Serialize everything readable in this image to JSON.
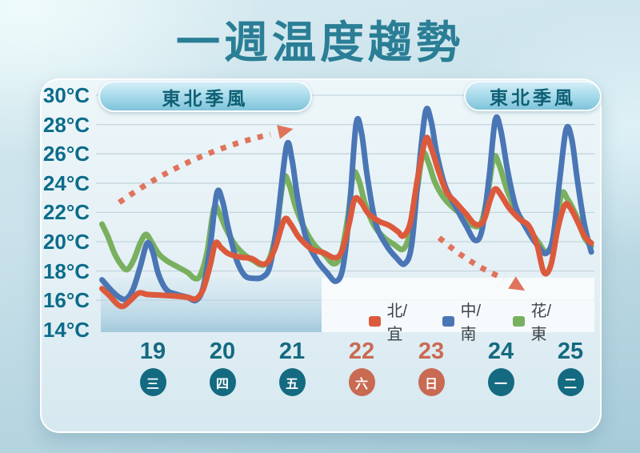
{
  "page": {
    "title": "一週温度趨勢"
  },
  "colors": {
    "title_teal": "#2a7e95",
    "axis_teal": "#0c6c8a",
    "weekday_teal": "#146a80",
    "weekend_salmon": "#c96a52",
    "arrow_salmon": "#e0735b",
    "gridline": "#c3d5dd",
    "series_north": "#dc5a3c",
    "series_central_south": "#4a76b5",
    "series_east": "#79b05f"
  },
  "chart_data": {
    "type": "line",
    "title": "一週温度趨勢",
    "y_axis": {
      "unit": "°C",
      "min": 14,
      "max": 30,
      "step": 2,
      "tick_labels": [
        "30°C",
        "28°C",
        "26°C",
        "24°C",
        "22°C",
        "20°C",
        "18°C",
        "16°C",
        "14°C"
      ],
      "grid": true
    },
    "x_axis": {
      "note": "x unit = day of month, fractional part = time of day; ticks are the dates below",
      "days": [
        {
          "date": "19",
          "weekday": "三",
          "weekend": false
        },
        {
          "date": "20",
          "weekday": "四",
          "weekend": false
        },
        {
          "date": "21",
          "weekday": "五",
          "weekend": false
        },
        {
          "date": "22",
          "weekday": "六",
          "weekend": true
        },
        {
          "date": "23",
          "weekday": "日",
          "weekend": true
        },
        {
          "date": "24",
          "weekday": "一",
          "weekend": false
        },
        {
          "date": "25",
          "weekday": "二",
          "weekend": false
        }
      ]
    },
    "annotations": {
      "monsoon_left": "東北季風",
      "monsoon_right": "東北季風",
      "trend_arrow_1": "rising (day 19 → 22)",
      "trend_arrow_2": "falling (day 23 → 25)"
    },
    "legend": {
      "position": "bottom-right inside plot",
      "entries": [
        {
          "name": "北/宜",
          "color": "#dc5a3c"
        },
        {
          "name": "中/南",
          "color": "#4a76b5"
        },
        {
          "name": "花/東",
          "color": "#79b05f"
        }
      ]
    },
    "series": [
      {
        "name": "花/東",
        "color": "#79b05f",
        "points": [
          [
            18.27,
            21.2
          ],
          [
            18.35,
            20.4
          ],
          [
            18.45,
            19.2
          ],
          [
            18.55,
            18.4
          ],
          [
            18.63,
            18.1
          ],
          [
            18.72,
            18.7
          ],
          [
            18.82,
            19.9
          ],
          [
            18.9,
            20.5
          ],
          [
            18.98,
            20.0
          ],
          [
            19.08,
            19.2
          ],
          [
            19.2,
            18.7
          ],
          [
            19.35,
            18.3
          ],
          [
            19.5,
            17.9
          ],
          [
            19.6,
            17.5
          ],
          [
            19.68,
            17.7
          ],
          [
            19.78,
            19.3
          ],
          [
            19.88,
            22.3
          ],
          [
            19.96,
            21.9
          ],
          [
            20.05,
            20.9
          ],
          [
            20.18,
            19.8
          ],
          [
            20.32,
            19.1
          ],
          [
            20.45,
            18.7
          ],
          [
            20.58,
            18.4
          ],
          [
            20.68,
            18.9
          ],
          [
            20.78,
            20.9
          ],
          [
            20.88,
            24.3
          ],
          [
            20.96,
            23.9
          ],
          [
            21.05,
            22.4
          ],
          [
            21.18,
            20.9
          ],
          [
            21.32,
            19.8
          ],
          [
            21.47,
            19.1
          ],
          [
            21.6,
            18.5
          ],
          [
            21.7,
            19.1
          ],
          [
            21.8,
            21.6
          ],
          [
            21.88,
            24.6
          ],
          [
            21.96,
            24.2
          ],
          [
            22.05,
            22.6
          ],
          [
            22.18,
            21.1
          ],
          [
            22.32,
            20.3
          ],
          [
            22.47,
            19.8
          ],
          [
            22.6,
            19.5
          ],
          [
            22.7,
            20.7
          ],
          [
            22.8,
            23.6
          ],
          [
            22.88,
            26.0
          ],
          [
            22.96,
            25.4
          ],
          [
            23.05,
            24.1
          ],
          [
            23.18,
            23.0
          ],
          [
            23.32,
            22.3
          ],
          [
            23.47,
            21.7
          ],
          [
            23.6,
            21.1
          ],
          [
            23.72,
            21.3
          ],
          [
            23.82,
            23.5
          ],
          [
            23.9,
            25.8
          ],
          [
            23.98,
            25.2
          ],
          [
            24.1,
            23.4
          ],
          [
            24.25,
            21.9
          ],
          [
            24.4,
            20.9
          ],
          [
            24.55,
            19.9
          ],
          [
            24.65,
            19.3
          ],
          [
            24.75,
            20.1
          ],
          [
            24.87,
            23.2
          ],
          [
            24.96,
            22.9
          ],
          [
            25.1,
            21.6
          ],
          [
            25.2,
            20.3
          ],
          [
            25.3,
            19.7
          ]
        ]
      },
      {
        "name": "中/南",
        "color": "#4a76b5",
        "points": [
          [
            18.27,
            17.4
          ],
          [
            18.4,
            16.7
          ],
          [
            18.52,
            16.2
          ],
          [
            18.62,
            16.1
          ],
          [
            18.72,
            16.8
          ],
          [
            18.82,
            18.3
          ],
          [
            18.92,
            19.9
          ],
          [
            19.0,
            19.3
          ],
          [
            19.08,
            17.8
          ],
          [
            19.2,
            16.7
          ],
          [
            19.35,
            16.4
          ],
          [
            19.5,
            16.2
          ],
          [
            19.62,
            16.0
          ],
          [
            19.72,
            16.8
          ],
          [
            19.82,
            19.5
          ],
          [
            19.92,
            23.3
          ],
          [
            20.0,
            22.8
          ],
          [
            20.08,
            21.0
          ],
          [
            20.2,
            18.8
          ],
          [
            20.32,
            17.7
          ],
          [
            20.45,
            17.5
          ],
          [
            20.58,
            17.6
          ],
          [
            20.68,
            18.3
          ],
          [
            20.78,
            21.0
          ],
          [
            20.92,
            26.5
          ],
          [
            21.0,
            25.6
          ],
          [
            21.08,
            23.0
          ],
          [
            21.2,
            20.3
          ],
          [
            21.35,
            18.8
          ],
          [
            21.5,
            17.9
          ],
          [
            21.63,
            17.3
          ],
          [
            21.73,
            18.2
          ],
          [
            21.82,
            21.8
          ],
          [
            21.92,
            28.0
          ],
          [
            22.0,
            27.4
          ],
          [
            22.08,
            24.5
          ],
          [
            22.2,
            21.3
          ],
          [
            22.35,
            19.8
          ],
          [
            22.5,
            18.9
          ],
          [
            22.62,
            18.5
          ],
          [
            22.72,
            19.8
          ],
          [
            22.82,
            24.8
          ],
          [
            22.92,
            28.9
          ],
          [
            23.0,
            28.2
          ],
          [
            23.08,
            26.0
          ],
          [
            23.2,
            23.8
          ],
          [
            23.35,
            22.4
          ],
          [
            23.5,
            21.1
          ],
          [
            23.63,
            20.1
          ],
          [
            23.73,
            20.8
          ],
          [
            23.83,
            24.3
          ],
          [
            23.92,
            28.3
          ],
          [
            24.0,
            27.6
          ],
          [
            24.1,
            24.8
          ],
          [
            24.22,
            22.3
          ],
          [
            24.38,
            20.8
          ],
          [
            24.52,
            19.8
          ],
          [
            24.65,
            19.2
          ],
          [
            24.75,
            20.3
          ],
          [
            24.85,
            24.4
          ],
          [
            24.94,
            27.7
          ],
          [
            25.02,
            27.0
          ],
          [
            25.1,
            24.2
          ],
          [
            25.2,
            21.2
          ],
          [
            25.3,
            19.3
          ]
        ]
      },
      {
        "name": "北/宜",
        "color": "#dc5a3c",
        "points": [
          [
            18.27,
            16.8
          ],
          [
            18.38,
            16.3
          ],
          [
            18.5,
            15.7
          ],
          [
            18.58,
            15.6
          ],
          [
            18.68,
            16.0
          ],
          [
            18.8,
            16.5
          ],
          [
            18.92,
            16.4
          ],
          [
            19.1,
            16.35
          ],
          [
            19.3,
            16.3
          ],
          [
            19.5,
            16.2
          ],
          [
            19.62,
            16.1
          ],
          [
            19.72,
            16.7
          ],
          [
            19.82,
            18.3
          ],
          [
            19.9,
            19.9
          ],
          [
            19.98,
            19.6
          ],
          [
            20.08,
            19.2
          ],
          [
            20.25,
            18.95
          ],
          [
            20.42,
            18.85
          ],
          [
            20.55,
            18.5
          ],
          [
            20.65,
            18.6
          ],
          [
            20.76,
            19.6
          ],
          [
            20.89,
            21.5
          ],
          [
            20.98,
            21.2
          ],
          [
            21.1,
            20.3
          ],
          [
            21.28,
            19.5
          ],
          [
            21.45,
            19.25
          ],
          [
            21.62,
            18.9
          ],
          [
            21.72,
            19.4
          ],
          [
            21.82,
            21.2
          ],
          [
            21.9,
            22.9
          ],
          [
            21.99,
            22.7
          ],
          [
            22.1,
            21.9
          ],
          [
            22.25,
            21.4
          ],
          [
            22.4,
            21.1
          ],
          [
            22.52,
            20.7
          ],
          [
            22.6,
            20.4
          ],
          [
            22.7,
            21.3
          ],
          [
            22.8,
            24.2
          ],
          [
            22.92,
            27.0
          ],
          [
            23.0,
            26.4
          ],
          [
            23.1,
            24.9
          ],
          [
            23.22,
            23.4
          ],
          [
            23.35,
            22.7
          ],
          [
            23.5,
            21.9
          ],
          [
            23.63,
            21.2
          ],
          [
            23.75,
            21.4
          ],
          [
            23.85,
            22.9
          ],
          [
            23.92,
            23.6
          ],
          [
            24.0,
            23.2
          ],
          [
            24.12,
            22.3
          ],
          [
            24.28,
            21.5
          ],
          [
            24.4,
            21.1
          ],
          [
            24.52,
            19.8
          ],
          [
            24.62,
            17.9
          ],
          [
            24.72,
            18.4
          ],
          [
            24.82,
            20.9
          ],
          [
            24.92,
            22.5
          ],
          [
            25.0,
            22.3
          ],
          [
            25.1,
            21.4
          ],
          [
            25.2,
            20.4
          ],
          [
            25.3,
            19.9
          ]
        ]
      }
    ]
  }
}
